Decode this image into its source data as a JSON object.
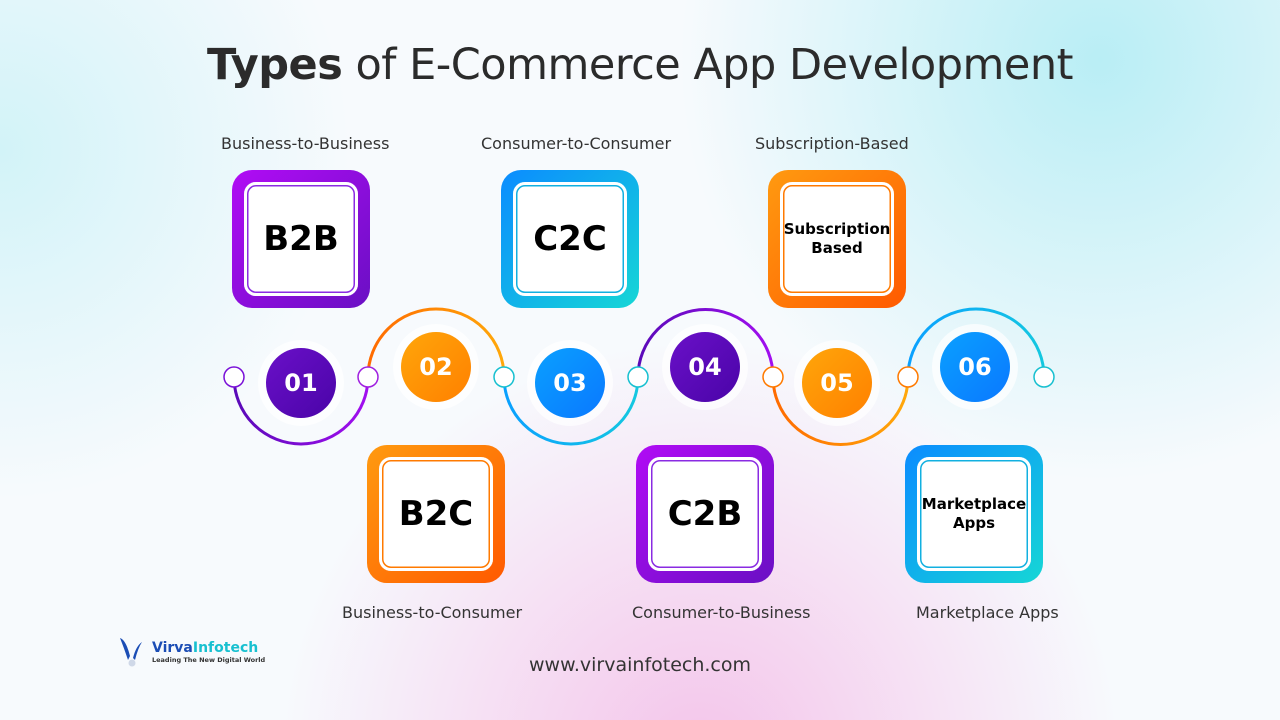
{
  "title": {
    "bold": "Types",
    "rest": " of E-Commerce App Development"
  },
  "items": [
    {
      "number": "01",
      "card": "B2B",
      "label": "Business-to-Business",
      "color": "#7a12d8"
    },
    {
      "number": "02",
      "card": "B2C",
      "label": "Business-to-Consumer",
      "color": "#ff7a00"
    },
    {
      "number": "03",
      "card": "C2C",
      "label": "Consumer-to-Consumer",
      "color": "#0aa0ff"
    },
    {
      "number": "04",
      "card": "C2B",
      "label": "Consumer-to-Business",
      "color": "#7a12d8"
    },
    {
      "number": "05",
      "card": "Subscription Based",
      "label": "Subscription-Based",
      "color": "#ff7a00"
    },
    {
      "number": "06",
      "card": "Marketplace Apps",
      "label": "Marketplace Apps",
      "color": "#0aa0ff"
    }
  ],
  "logo": {
    "name_a": "Virva",
    "name_b": "Infotech",
    "tagline": "Leading The New Digital World"
  },
  "website": "www.virvainfotech.com"
}
